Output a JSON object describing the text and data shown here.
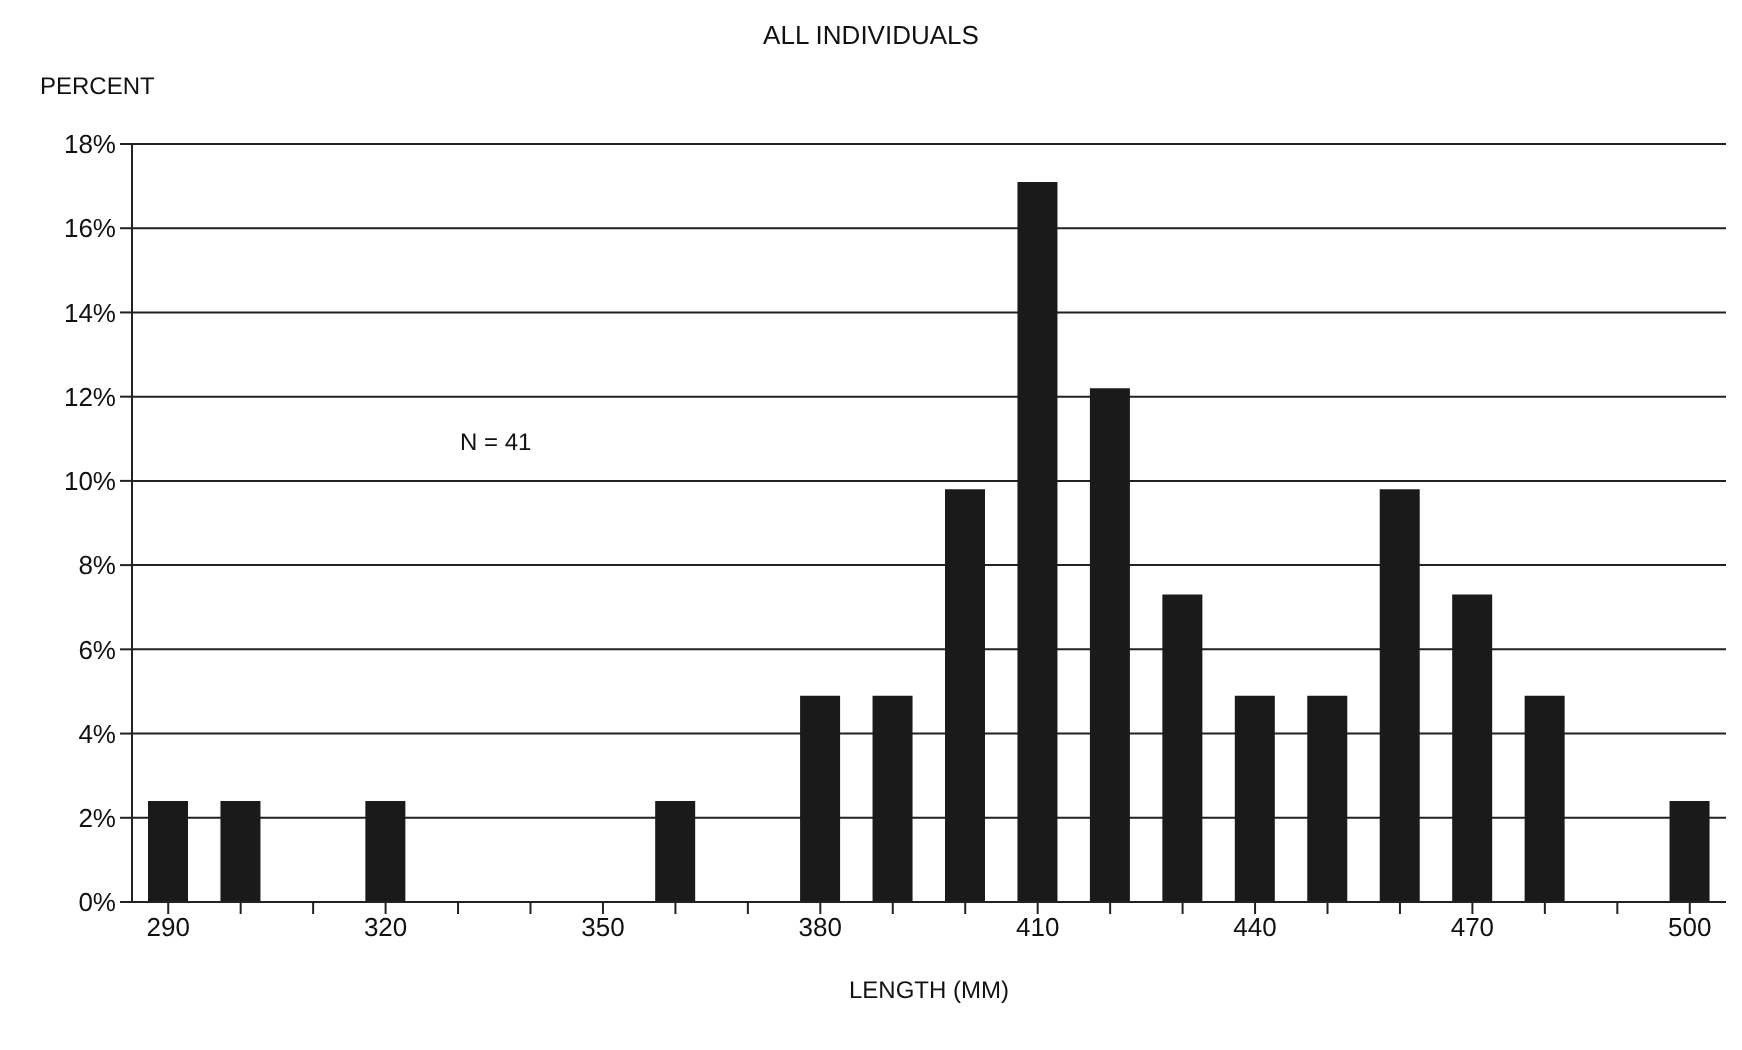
{
  "chart_data": {
    "type": "bar",
    "title": "ALL INDIVIDUALS",
    "xlabel": "LENGTH (MM)",
    "ylabel": "PERCENT",
    "annotations": [
      "N = 41"
    ],
    "categories": [
      "290",
      null,
      null,
      "320",
      null,
      null,
      "350",
      null,
      null,
      "380",
      null,
      null,
      "410",
      null,
      null,
      "440",
      null,
      null,
      "470",
      null,
      null,
      "500"
    ],
    "values": [
      2.4,
      2.4,
      0,
      2.4,
      0,
      0,
      0,
      2.4,
      0,
      4.9,
      4.9,
      9.8,
      17.1,
      12.2,
      7.3,
      4.9,
      4.9,
      9.8,
      7.3,
      4.9,
      0,
      2.4
    ],
    "color": "#1a1a1a",
    "ylim": [
      0,
      18
    ],
    "yticks": [
      {
        "value": 0,
        "label": "0%"
      },
      {
        "value": 2,
        "label": "2%"
      },
      {
        "value": 4,
        "label": "4%"
      },
      {
        "value": 6,
        "label": "6%"
      },
      {
        "value": 8,
        "label": "8%"
      },
      {
        "value": 10,
        "label": "10%"
      },
      {
        "value": 12,
        "label": "12%"
      },
      {
        "value": 14,
        "label": "14%"
      },
      {
        "value": 16,
        "label": "16%"
      },
      {
        "value": 18,
        "label": "18%"
      }
    ],
    "grid": "y"
  }
}
